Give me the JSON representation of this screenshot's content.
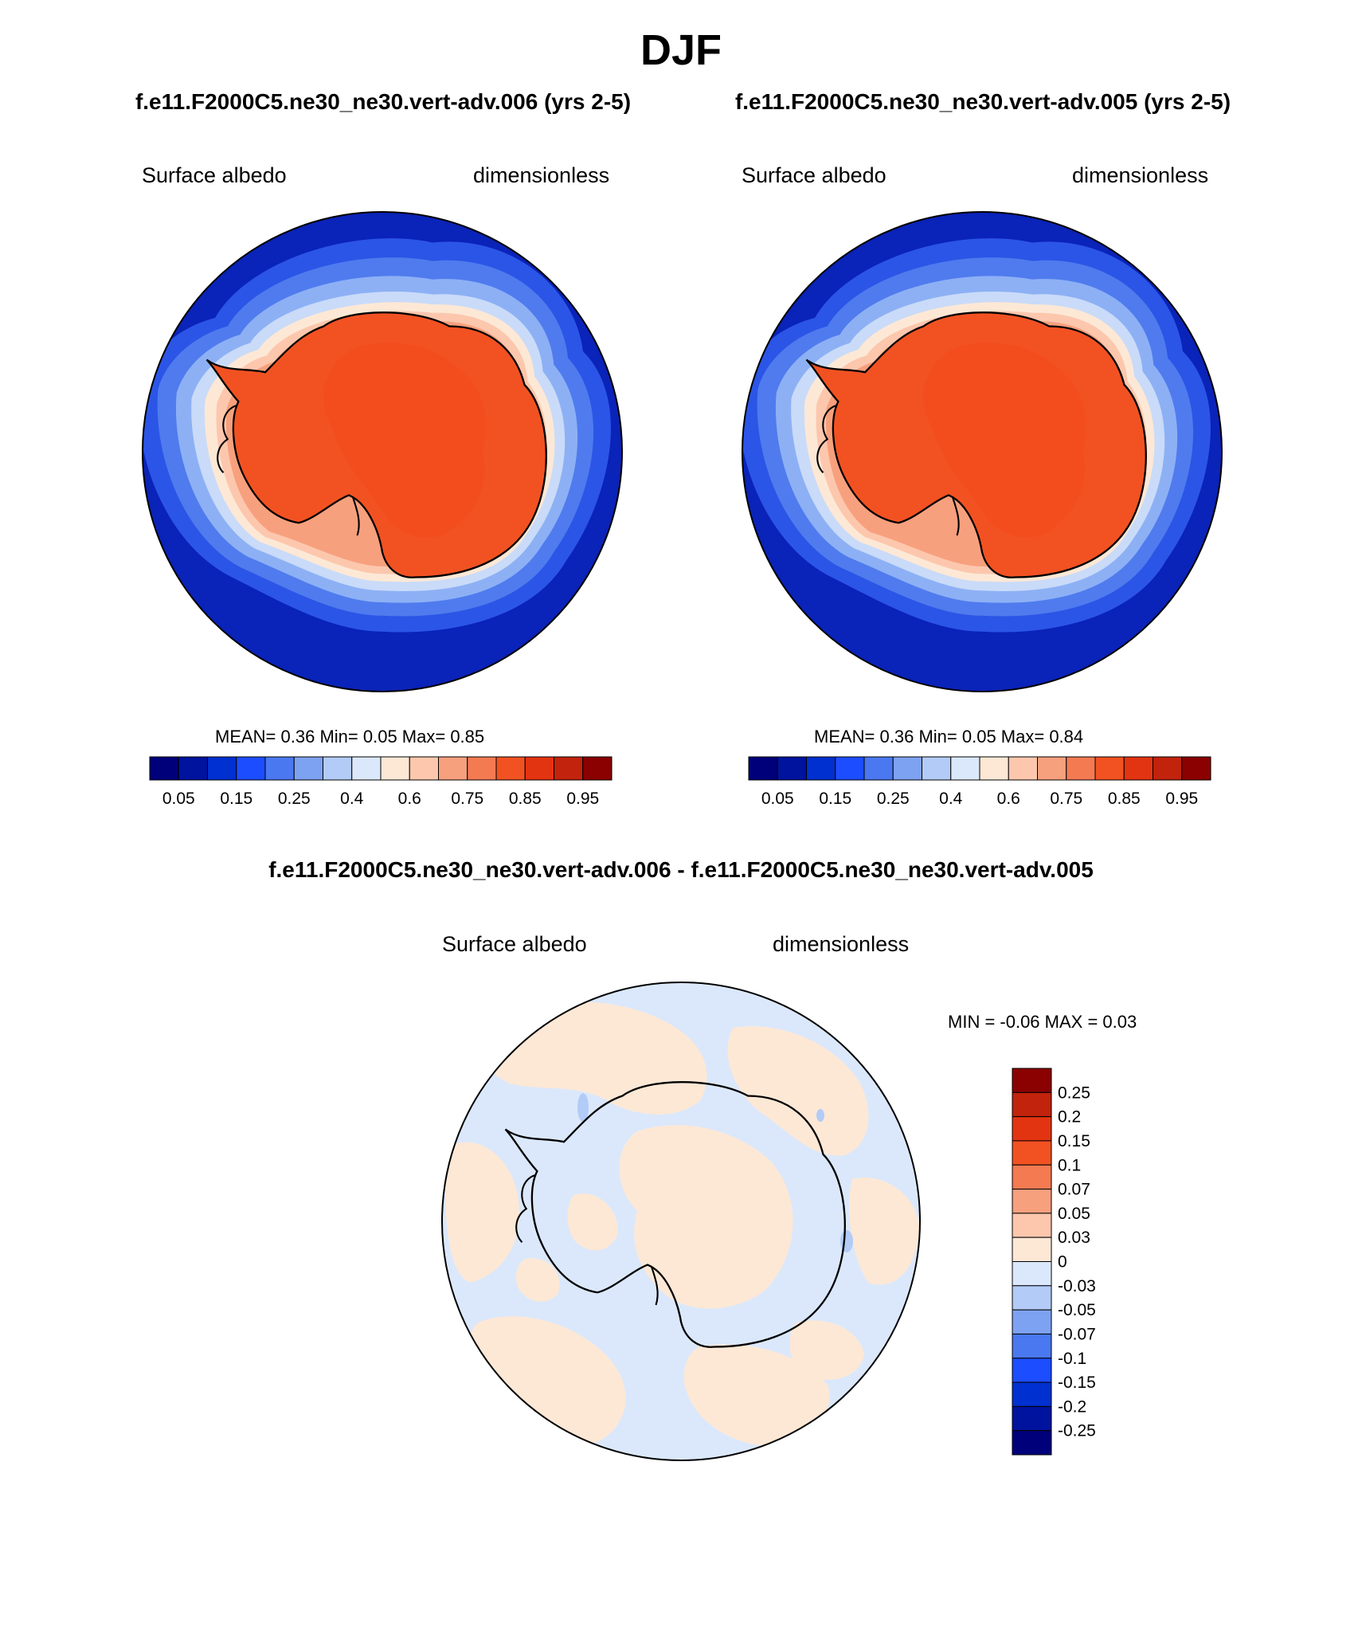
{
  "page": {
    "season": "DJF",
    "run_a_label": "f.e11.F2000C5.ne30_ne30.vert-adv.006 (yrs 2-5)",
    "run_b_label": "f.e11.F2000C5.ne30_ne30.vert-adv.005 (yrs 2-5)",
    "diff_label": "f.e11.F2000C5.ne30_ne30.vert-adv.006 - f.e11.F2000C5.ne30_ne30.vert-adv.005"
  },
  "panels": {
    "a": {
      "variable": "Surface albedo",
      "units": "dimensionless",
      "stats": "MEAN=   0.36   Min=    0.05   Max=    0.85"
    },
    "b": {
      "variable": "Surface albedo",
      "units": "dimensionless",
      "stats": "MEAN=   0.36   Min=    0.05   Max=    0.84"
    },
    "diff": {
      "variable": "Surface albedo",
      "units": "dimensionless",
      "stats": "MIN =   -0.06 MAX =    0.03"
    }
  },
  "colorbar_main": {
    "colors": [
      "#00007a",
      "#00139e",
      "#0030d0",
      "#1c4dff",
      "#4a78f0",
      "#7ea2f2",
      "#b3cbf7",
      "#dbe8fb",
      "#fde8d6",
      "#fcc7ad",
      "#f7a07e",
      "#f47a52",
      "#f25222",
      "#e33412",
      "#c2230c",
      "#8b0000"
    ],
    "labels": [
      "0.05",
      "0.15",
      "0.25",
      "0.4",
      "0.6",
      "0.75",
      "0.85",
      "0.95"
    ]
  },
  "colorbar_diff": {
    "colors": [
      "#8b0000",
      "#c2230c",
      "#e33412",
      "#f25222",
      "#f47a52",
      "#f7a07e",
      "#fcc7ad",
      "#fde8d6",
      "#dbe8fb",
      "#b3cbf7",
      "#7ea2f2",
      "#4a78f0",
      "#1c4dff",
      "#0030d0",
      "#00139e",
      "#00007a"
    ],
    "labels": [
      "0.25",
      "0.2",
      "0.15",
      "0.1",
      "0.07",
      "0.05",
      "0.03",
      "0",
      "-0.03",
      "-0.05",
      "-0.07",
      "-0.1",
      "-0.15",
      "-0.2",
      "-0.25"
    ]
  },
  "map_colors": {
    "ocean": "#0a23b8",
    "ice_edge_1": "#2b55e6",
    "ice_edge_2": "#4f7bee",
    "ice_edge_3": "#8db0f5",
    "ice_edge_4": "#c9dbf8",
    "ice_edge_5": "#fde8d6",
    "coast_band_1": "#fcc7ad",
    "coast_band_2": "#f7a07e",
    "continent": "#f25222",
    "diff_positive": "#fde8d6",
    "diff_negative": "#dbe8fb",
    "diff_blob": "#b3cbf7"
  }
}
